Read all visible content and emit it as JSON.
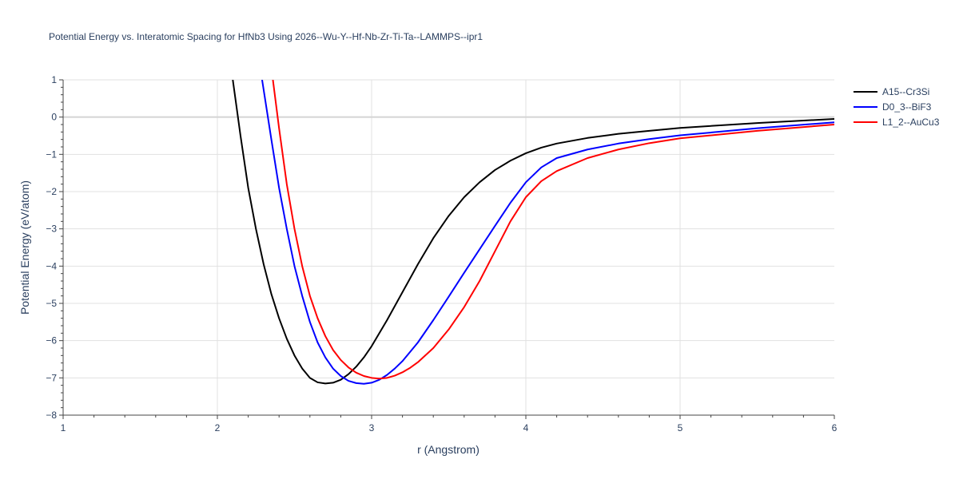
{
  "chart_data": {
    "type": "line",
    "title": "Potential Energy vs. Interatomic Spacing for HfNb3 Using 2026--Wu-Y--Hf-Nb-Zr-Ti-Ta--LAMMPS--ipr1",
    "xlabel": "r (Angstrom)",
    "ylabel": "Potential Energy (eV/atom)",
    "xlim": [
      1,
      6
    ],
    "ylim": [
      -8,
      1
    ],
    "xticks": [
      1,
      2,
      3,
      4,
      5,
      6
    ],
    "yticks": [
      1,
      0,
      -1,
      -2,
      -3,
      -4,
      -5,
      -6,
      -7,
      -8
    ],
    "ytick_labels": [
      "1",
      "0",
      "−1",
      "−2",
      "−3",
      "−4",
      "−5",
      "−6",
      "−7",
      "−8"
    ],
    "grid": true,
    "legend_position": "top-right",
    "series": [
      {
        "name": "A15--Cr3Si",
        "color": "#000000",
        "x": [
          2.1,
          2.15,
          2.2,
          2.25,
          2.3,
          2.35,
          2.4,
          2.45,
          2.5,
          2.55,
          2.6,
          2.65,
          2.7,
          2.75,
          2.8,
          2.85,
          2.9,
          2.95,
          3.0,
          3.1,
          3.2,
          3.3,
          3.4,
          3.5,
          3.6,
          3.7,
          3.8,
          3.9,
          4.0,
          4.1,
          4.2,
          4.4,
          4.6,
          4.8,
          5.0,
          5.5,
          6.0
        ],
        "y": [
          1.0,
          -0.5,
          -1.9,
          -3.0,
          -3.95,
          -4.75,
          -5.4,
          -5.95,
          -6.4,
          -6.75,
          -7.0,
          -7.12,
          -7.15,
          -7.13,
          -7.05,
          -6.9,
          -6.7,
          -6.45,
          -6.15,
          -5.45,
          -4.7,
          -3.95,
          -3.25,
          -2.65,
          -2.15,
          -1.75,
          -1.42,
          -1.17,
          -0.97,
          -0.82,
          -0.71,
          -0.56,
          -0.45,
          -0.37,
          -0.29,
          -0.16,
          -0.05
        ]
      },
      {
        "name": "D0_3--BiF3",
        "color": "#0000ff",
        "x": [
          2.29,
          2.35,
          2.4,
          2.45,
          2.5,
          2.55,
          2.6,
          2.65,
          2.7,
          2.75,
          2.8,
          2.85,
          2.9,
          2.95,
          3.0,
          3.05,
          3.1,
          3.15,
          3.2,
          3.3,
          3.4,
          3.5,
          3.6,
          3.7,
          3.8,
          3.9,
          4.0,
          4.1,
          4.2,
          4.4,
          4.6,
          4.8,
          5.0,
          5.5,
          6.0
        ],
        "y": [
          1.0,
          -0.6,
          -1.9,
          -3.0,
          -4.0,
          -4.8,
          -5.5,
          -6.05,
          -6.45,
          -6.75,
          -6.95,
          -7.08,
          -7.14,
          -7.16,
          -7.13,
          -7.05,
          -6.92,
          -6.75,
          -6.55,
          -6.05,
          -5.45,
          -4.82,
          -4.18,
          -3.55,
          -2.92,
          -2.3,
          -1.75,
          -1.35,
          -1.1,
          -0.87,
          -0.71,
          -0.59,
          -0.49,
          -0.3,
          -0.14
        ]
      },
      {
        "name": "L1_2--AuCu3",
        "color": "#ff0000",
        "x": [
          2.36,
          2.4,
          2.45,
          2.5,
          2.55,
          2.6,
          2.65,
          2.7,
          2.75,
          2.8,
          2.85,
          2.9,
          2.95,
          3.0,
          3.05,
          3.1,
          3.15,
          3.2,
          3.25,
          3.3,
          3.4,
          3.5,
          3.6,
          3.7,
          3.8,
          3.9,
          4.0,
          4.1,
          4.2,
          4.4,
          4.6,
          4.8,
          5.0,
          5.5,
          6.0
        ],
        "y": [
          1.0,
          -0.3,
          -1.8,
          -3.0,
          -4.0,
          -4.8,
          -5.4,
          -5.88,
          -6.25,
          -6.52,
          -6.72,
          -6.86,
          -6.95,
          -7.0,
          -7.02,
          -7.0,
          -6.94,
          -6.85,
          -6.73,
          -6.58,
          -6.2,
          -5.7,
          -5.1,
          -4.4,
          -3.6,
          -2.8,
          -2.15,
          -1.72,
          -1.45,
          -1.1,
          -0.87,
          -0.7,
          -0.57,
          -0.37,
          -0.2
        ]
      }
    ]
  }
}
